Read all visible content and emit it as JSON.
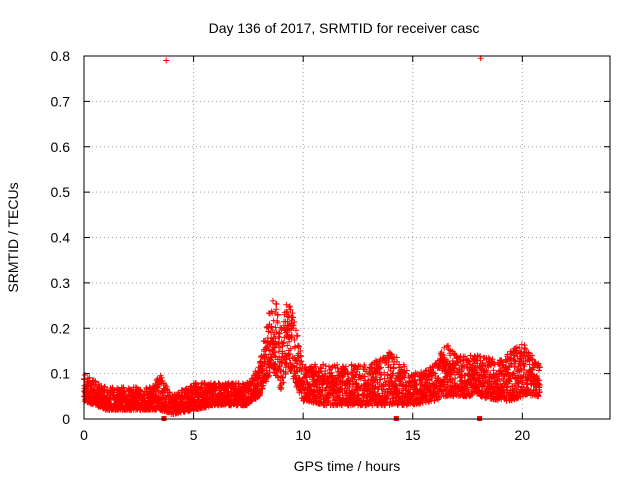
{
  "chart_data": {
    "type": "scatter",
    "title": "Day 136 of 2017, SRMTID for receiver casc",
    "xlabel": "GPS time / hours",
    "ylabel": "SRMTID / TECUs",
    "xlim": [
      0,
      24
    ],
    "ylim": [
      0,
      0.8
    ],
    "xticks": [
      0,
      5,
      10,
      15,
      20
    ],
    "yticks": [
      0,
      0.1,
      0.2,
      0.3,
      0.4,
      0.5,
      0.6,
      0.7,
      0.8
    ],
    "ytick_labels": [
      "0",
      "0.1",
      "0.2",
      "0.3",
      "0.4",
      "0.5",
      "0.6",
      "0.7",
      "0.8"
    ],
    "grid": true,
    "marker": "+",
    "series_color": "#ff0000",
    "outliers": [
      {
        "x": 3.75,
        "y": 0.79
      },
      {
        "x": 18.1,
        "y": 0.795
      }
    ],
    "gap_markers_x": [
      3.65,
      14.25,
      18.05
    ],
    "envelope": [
      {
        "x": 0.0,
        "lo": 0.04,
        "hi": 0.1
      },
      {
        "x": 1.0,
        "lo": 0.02,
        "hi": 0.07
      },
      {
        "x": 2.0,
        "lo": 0.02,
        "hi": 0.07
      },
      {
        "x": 3.0,
        "lo": 0.02,
        "hi": 0.07
      },
      {
        "x": 3.5,
        "lo": 0.02,
        "hi": 0.1
      },
      {
        "x": 4.0,
        "lo": 0.01,
        "hi": 0.05
      },
      {
        "x": 5.0,
        "lo": 0.02,
        "hi": 0.08
      },
      {
        "x": 6.0,
        "lo": 0.03,
        "hi": 0.08
      },
      {
        "x": 7.0,
        "lo": 0.03,
        "hi": 0.08
      },
      {
        "x": 7.5,
        "lo": 0.03,
        "hi": 0.08
      },
      {
        "x": 8.0,
        "lo": 0.05,
        "hi": 0.12
      },
      {
        "x": 8.5,
        "lo": 0.1,
        "hi": 0.25
      },
      {
        "x": 8.7,
        "lo": 0.1,
        "hi": 0.28
      },
      {
        "x": 9.0,
        "lo": 0.06,
        "hi": 0.2
      },
      {
        "x": 9.3,
        "lo": 0.12,
        "hi": 0.27
      },
      {
        "x": 9.6,
        "lo": 0.08,
        "hi": 0.22
      },
      {
        "x": 10.0,
        "lo": 0.04,
        "hi": 0.12
      },
      {
        "x": 11.0,
        "lo": 0.03,
        "hi": 0.12
      },
      {
        "x": 12.0,
        "lo": 0.03,
        "hi": 0.12
      },
      {
        "x": 13.0,
        "lo": 0.03,
        "hi": 0.12
      },
      {
        "x": 14.0,
        "lo": 0.03,
        "hi": 0.15
      },
      {
        "x": 15.0,
        "lo": 0.03,
        "hi": 0.1
      },
      {
        "x": 16.0,
        "lo": 0.04,
        "hi": 0.12
      },
      {
        "x": 16.5,
        "lo": 0.05,
        "hi": 0.17
      },
      {
        "x": 17.0,
        "lo": 0.05,
        "hi": 0.14
      },
      {
        "x": 18.0,
        "lo": 0.05,
        "hi": 0.14
      },
      {
        "x": 19.0,
        "lo": 0.04,
        "hi": 0.13
      },
      {
        "x": 19.5,
        "lo": 0.04,
        "hi": 0.15
      },
      {
        "x": 20.0,
        "lo": 0.05,
        "hi": 0.17
      },
      {
        "x": 20.8,
        "lo": 0.05,
        "hi": 0.12
      }
    ]
  }
}
